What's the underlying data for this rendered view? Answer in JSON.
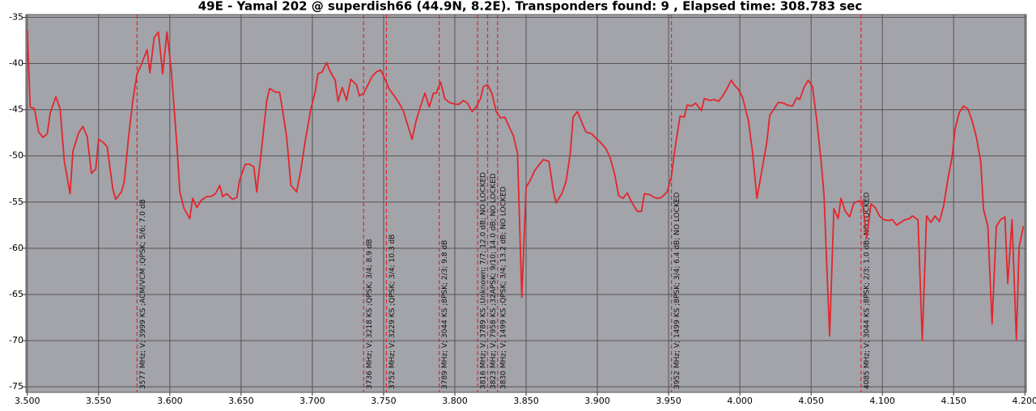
{
  "chart_data": {
    "type": "line",
    "title": "49E - Yamal 202 @ superdish66 (44.9N, 8.2E). Transponders found: 9 , Elapsed time: 308.783 sec",
    "xlim": [
      3.499,
      4.201
    ],
    "ylim": [
      -75.6,
      -34.7
    ],
    "xticks": [
      {
        "value": 3.5,
        "label": "3.500"
      },
      {
        "value": 3.55,
        "label": "3.550"
      },
      {
        "value": 3.6,
        "label": "3.600"
      },
      {
        "value": 3.65,
        "label": "3.650"
      },
      {
        "value": 3.7,
        "label": "3.700"
      },
      {
        "value": 3.75,
        "label": "3.750"
      },
      {
        "value": 3.8,
        "label": "3.800"
      },
      {
        "value": 3.85,
        "label": "3.850"
      },
      {
        "value": 3.9,
        "label": "3.900"
      },
      {
        "value": 3.95,
        "label": "3.950"
      },
      {
        "value": 4.0,
        "label": "4.000"
      },
      {
        "value": 4.05,
        "label": "4.050"
      },
      {
        "value": 4.1,
        "label": "4.100"
      },
      {
        "value": 4.15,
        "label": "4.150"
      },
      {
        "value": 4.2,
        "label": "4.200"
      }
    ],
    "yticks": [
      -35,
      -40,
      -45,
      -50,
      -55,
      -60,
      -65,
      -70,
      -75
    ],
    "grid": true,
    "x": [
      3.5,
      3.502,
      3.505,
      3.508,
      3.511,
      3.514,
      3.516,
      3.52,
      3.523,
      3.526,
      3.53,
      3.532,
      3.536,
      3.539,
      3.542,
      3.545,
      3.548,
      3.55,
      3.553,
      3.556,
      3.56,
      3.562,
      3.566,
      3.568,
      3.571,
      3.574,
      3.577,
      3.58,
      3.584,
      3.586,
      3.589,
      3.592,
      3.595,
      3.598,
      3.601,
      3.605,
      3.607,
      3.61,
      3.614,
      3.616,
      3.619,
      3.622,
      3.626,
      3.629,
      3.632,
      3.635,
      3.637,
      3.64,
      3.644,
      3.647,
      3.649,
      3.653,
      3.656,
      3.659,
      3.661,
      3.664,
      3.668,
      3.67,
      3.674,
      3.677,
      3.679,
      3.682,
      3.685,
      3.689,
      3.692,
      3.695,
      3.699,
      3.702,
      3.704,
      3.707,
      3.71,
      3.712,
      3.716,
      3.718,
      3.721,
      3.724,
      3.727,
      3.731,
      3.733,
      3.736,
      3.739,
      3.742,
      3.745,
      3.748,
      3.751,
      3.754,
      3.758,
      3.761,
      3.764,
      3.766,
      3.77,
      3.773,
      3.776,
      3.779,
      3.782,
      3.785,
      3.787,
      3.79,
      3.793,
      3.796,
      3.8,
      3.803,
      3.806,
      3.809,
      3.812,
      3.815,
      3.818,
      3.82,
      3.823,
      3.826,
      3.829,
      3.832,
      3.835,
      3.838,
      3.841,
      3.844,
      3.847,
      3.85,
      3.853,
      3.856,
      3.859,
      3.862,
      3.866,
      3.869,
      3.871,
      3.875,
      3.878,
      3.881,
      3.883,
      3.886,
      3.89,
      3.892,
      3.896,
      3.899,
      3.902,
      3.906,
      3.909,
      3.912,
      3.915,
      3.918,
      3.921,
      3.924,
      3.928,
      3.931,
      3.933,
      3.937,
      3.94,
      3.942,
      3.945,
      3.949,
      3.952,
      3.954,
      3.958,
      3.961,
      3.963,
      3.966,
      3.969,
      3.973,
      3.975,
      3.979,
      3.982,
      3.985,
      3.988,
      3.991,
      3.994,
      3.996,
      3.999,
      4.002,
      4.006,
      4.009,
      4.012,
      4.016,
      4.019,
      4.021,
      4.024,
      4.027,
      4.031,
      4.033,
      4.037,
      4.04,
      4.042,
      4.045,
      4.048,
      4.051,
      4.054,
      4.057,
      4.059,
      4.063,
      4.066,
      4.069,
      4.071,
      4.074,
      4.077,
      4.08,
      4.083,
      4.086,
      4.089,
      4.092,
      4.095,
      4.098,
      4.101,
      4.104,
      4.107,
      4.11,
      4.113,
      4.116,
      4.119,
      4.121,
      4.125,
      4.128,
      4.131,
      4.134,
      4.137,
      4.14,
      4.143,
      4.146,
      4.149,
      4.151,
      4.154,
      4.157,
      4.16,
      4.163,
      4.166,
      4.169,
      4.171,
      4.174,
      4.177,
      4.18,
      4.183,
      4.186,
      4.188,
      4.191,
      4.194,
      4.196,
      4.199
    ],
    "series": [
      {
        "color": "#e3262b",
        "values": [
          -36.4,
          -44.7,
          -44.9,
          -47.4,
          -48,
          -47.6,
          -45.4,
          -43.6,
          -44.9,
          -50.6,
          -54.1,
          -49.5,
          -47.5,
          -46.8,
          -47.9,
          -51.9,
          -51.4,
          -48.2,
          -48.5,
          -49,
          -53.6,
          -54.7,
          -53.9,
          -52.8,
          -48,
          -44,
          -41.1,
          -40.1,
          -38.5,
          -41,
          -37.2,
          -36.6,
          -41.1,
          -36.6,
          -40.7,
          -48.9,
          -53.9,
          -55.7,
          -56.8,
          -54.6,
          -55.6,
          -54.8,
          -54.4,
          -54.4,
          -54.1,
          -53.2,
          -54.4,
          -54.1,
          -54.7,
          -54.5,
          -52.6,
          -50.9,
          -50.9,
          -51.2,
          -53.9,
          -49.8,
          -44,
          -42.7,
          -43.1,
          -43.1,
          -44.9,
          -48,
          -53.2,
          -53.9,
          -51.5,
          -48.4,
          -44.9,
          -43.1,
          -41.1,
          -40.9,
          -39.9,
          -40.7,
          -41.8,
          -44.1,
          -42.6,
          -44,
          -41.7,
          -42.3,
          -43.5,
          -43.2,
          -42.3,
          -41.4,
          -40.9,
          -40.7,
          -41.7,
          -42.8,
          -43.6,
          -44.3,
          -45.2,
          -46.2,
          -48.2,
          -46.1,
          -44.6,
          -43.2,
          -44.7,
          -43.2,
          -43.2,
          -42,
          -43.8,
          -44.2,
          -44.4,
          -44.4,
          -44,
          -44.3,
          -45.2,
          -44.7,
          -43.8,
          -42.5,
          -42.3,
          -43.2,
          -45.2,
          -45.9,
          -45.8,
          -46.8,
          -47.8,
          -49.7,
          -65.3,
          -53.4,
          -52.6,
          -51.6,
          -51,
          -50.4,
          -50.6,
          -53.7,
          -55.1,
          -54.1,
          -52.8,
          -49.7,
          -45.8,
          -45.2,
          -46.7,
          -47.4,
          -47.6,
          -48.1,
          -48.5,
          -49.2,
          -50.2,
          -51.9,
          -54.3,
          -54.6,
          -54,
          -55,
          -56,
          -56,
          -54.1,
          -54.2,
          -54.5,
          -54.6,
          -54.5,
          -53.9,
          -52.2,
          -49.7,
          -45.7,
          -45.8,
          -44.5,
          -44.6,
          -44.3,
          -45.1,
          -43.8,
          -44,
          -43.9,
          -44.1,
          -43.5,
          -42.7,
          -41.8,
          -42.3,
          -42.8,
          -43.7,
          -46.2,
          -49.7,
          -54.6,
          -51.1,
          -48.4,
          -45.6,
          -44.9,
          -44.2,
          -44.3,
          -44.5,
          -44.6,
          -43.7,
          -43.9,
          -42.6,
          -41.8,
          -42.5,
          -46.2,
          -50.6,
          -54.1,
          -69.5,
          -55.7,
          -56.8,
          -54.6,
          -56,
          -56.6,
          -55.1,
          -54.9,
          -54.9,
          -58.9,
          -55.2,
          -55.6,
          -56.5,
          -56.9,
          -57,
          -56.9,
          -57.5,
          -57.2,
          -56.9,
          -56.8,
          -56.5,
          -56.9,
          -70,
          -56.5,
          -57.2,
          -56.5,
          -57.1,
          -55.4,
          -52.5,
          -50.1,
          -47.1,
          -45.3,
          -44.6,
          -44.9,
          -46.2,
          -48,
          -50.6,
          -55.8,
          -57.6,
          -68.2,
          -57.6,
          -56.9,
          -56.6,
          -63.8,
          -56.9,
          -69.9,
          -59.8,
          -57.6
        ]
      }
    ],
    "markers": [
      {
        "x": 3.577,
        "label": "3577 MHz; V; 3999 KS ;ACM/VCM ;QPSK; 5/6; 7.0 dB"
      },
      {
        "x": 3.736,
        "label": "3736 MHz; V; 3218 KS ;QPSK; 3/4; 8.9 dB"
      },
      {
        "x": 3.752,
        "label": "3752 MHz; V; 3229 KS ;QPSK; 3/4; 10.3 dB"
      },
      {
        "x": 3.789,
        "label": "3789 MHz; V; 3044 KS ;8PSK; 2/3; 9.8 dB"
      },
      {
        "x": 3.816,
        "label": "3816 MHz; V; 3789 KS ;Unknown; 7/7; 12.0 dB; NO LOCKED"
      },
      {
        "x": 3.823,
        "label": "3823 MHz; V; 7958 KS ;32APSK; 9/10; 14.0 dB; NO LOCKED"
      },
      {
        "x": 3.83,
        "label": "3830 MHz; V; 1499 KS ;QPSK; 3/4; 13.2 dB; NO LOCKED"
      },
      {
        "x": 3.952,
        "label": "3952 MHz; V; 1499 KS ;8PSK; 3/4; 6.4 dB; NO LOCKED"
      },
      {
        "x": 4.085,
        "label": "4085 MHz; V; 3044 KS ;8PSK; 2/3; 1.0 dB; NO LOCKED"
      }
    ],
    "marker_color": "#e3262b"
  }
}
